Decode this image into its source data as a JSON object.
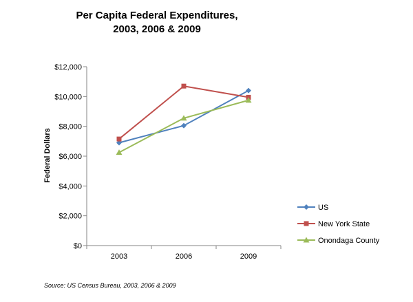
{
  "chart_data": {
    "type": "line",
    "title_lines": [
      "Per Capita Federal Expenditures,",
      "2003, 2006 & 2009"
    ],
    "ylabel": "Federal Dollars",
    "xlabel": "",
    "categories": [
      "2003",
      "2006",
      "2009"
    ],
    "ylim": [
      0,
      12000
    ],
    "yticks": [
      0,
      2000,
      4000,
      6000,
      8000,
      10000,
      12000
    ],
    "ytick_labels": [
      "$0",
      "$2,000",
      "$4,000",
      "$6,000",
      "$8,000",
      "$10,000",
      "$12,000"
    ],
    "grid": false,
    "legend_position": "right",
    "series": [
      {
        "name": "US",
        "values": [
          6900,
          8050,
          10400
        ],
        "color": "#4F81BD",
        "marker": "diamond"
      },
      {
        "name": "New York State",
        "values": [
          7150,
          10700,
          9950
        ],
        "color": "#C0504D",
        "marker": "square"
      },
      {
        "name": "Onondaga County",
        "values": [
          6250,
          8550,
          9750
        ],
        "color": "#9BBB59",
        "marker": "triangle"
      }
    ],
    "source": "Source: US Census Bureau, 2003, 2006 & 2009"
  }
}
